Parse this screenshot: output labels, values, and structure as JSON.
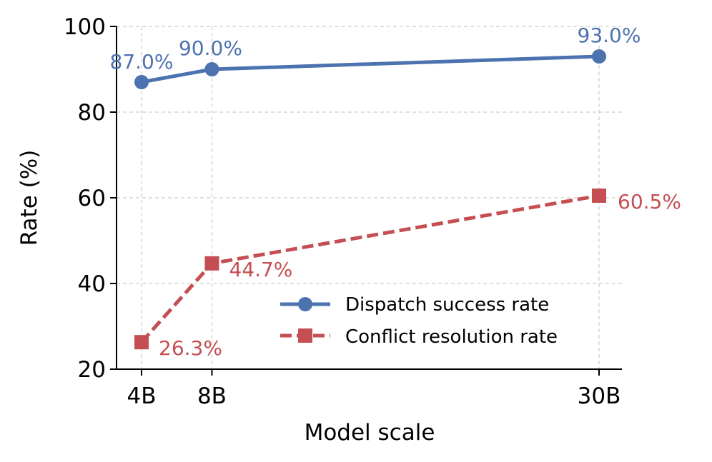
{
  "chart_data": {
    "type": "line",
    "title": "",
    "xlabel": "Model scale",
    "ylabel": "Rate (%)",
    "categories": [
      "4B",
      "8B",
      "30B"
    ],
    "x": [
      4,
      8,
      30
    ],
    "ylim": [
      20,
      100
    ],
    "yticks": [
      20,
      40,
      60,
      80,
      100
    ],
    "grid": true,
    "legend_position": "lower-right",
    "series": [
      {
        "name": "Dispatch success rate",
        "values": [
          87.0,
          90.0,
          93.0
        ],
        "labels": [
          "87.0%",
          "90.0%",
          "93.0%"
        ],
        "color": "#4C72B0",
        "marker": "circle",
        "line_style": "solid"
      },
      {
        "name": "Conflict resolution rate",
        "values": [
          26.3,
          44.7,
          60.5
        ],
        "labels": [
          "26.3%",
          "44.7%",
          "60.5%"
        ],
        "color": "#C44E52",
        "marker": "square",
        "line_style": "dashed"
      }
    ]
  }
}
